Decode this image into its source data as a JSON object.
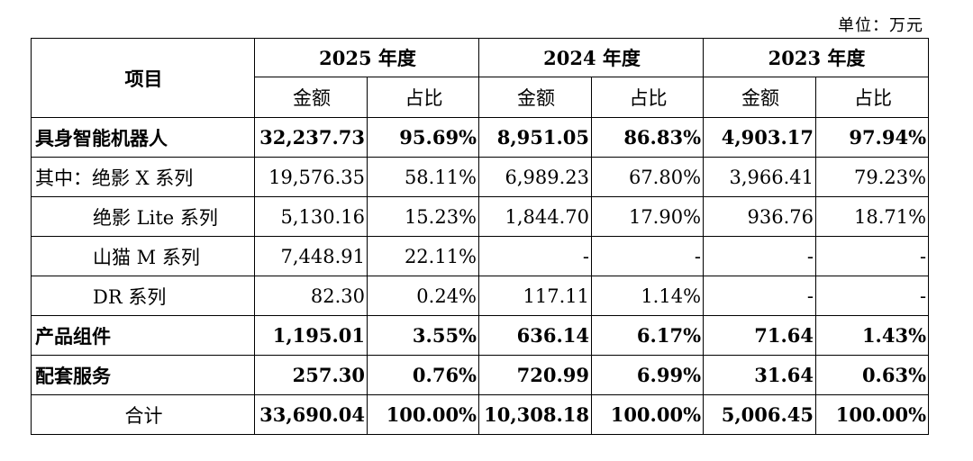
{
  "unit_label": "单位：万元",
  "header": {
    "item": "项目",
    "years": [
      "2025 年度",
      "2024 年度",
      "2023 年度"
    ],
    "amount": "金额",
    "share": "占比"
  },
  "rows": [
    {
      "label": "具身智能机器人",
      "cells": [
        "32,237.73",
        "95.69%",
        "8,951.05",
        "86.83%",
        "4,903.17",
        "97.94%"
      ]
    },
    {
      "label": "其中：绝影 X 系列",
      "cells": [
        "19,576.35",
        "58.11%",
        "6,989.23",
        "67.80%",
        "3,966.41",
        "79.23%"
      ]
    },
    {
      "label": "绝影 Lite 系列",
      "cells": [
        "5,130.16",
        "15.23%",
        "1,844.70",
        "17.90%",
        "936.76",
        "18.71%"
      ]
    },
    {
      "label": "山猫 M 系列",
      "cells": [
        "7,448.91",
        "22.11%",
        "-",
        "-",
        "-",
        "-"
      ]
    },
    {
      "label": "DR 系列",
      "cells": [
        "82.30",
        "0.24%",
        "117.11",
        "1.14%",
        "-",
        "-"
      ]
    },
    {
      "label": "产品组件",
      "cells": [
        "1,195.01",
        "3.55%",
        "636.14",
        "6.17%",
        "71.64",
        "1.43%"
      ]
    },
    {
      "label": "配套服务",
      "cells": [
        "257.30",
        "0.76%",
        "720.99",
        "6.99%",
        "31.64",
        "0.63%"
      ]
    },
    {
      "label": "合计",
      "cells": [
        "33,690.04",
        "100.00%",
        "10,308.18",
        "100.00%",
        "5,006.45",
        "100.00%"
      ]
    }
  ]
}
